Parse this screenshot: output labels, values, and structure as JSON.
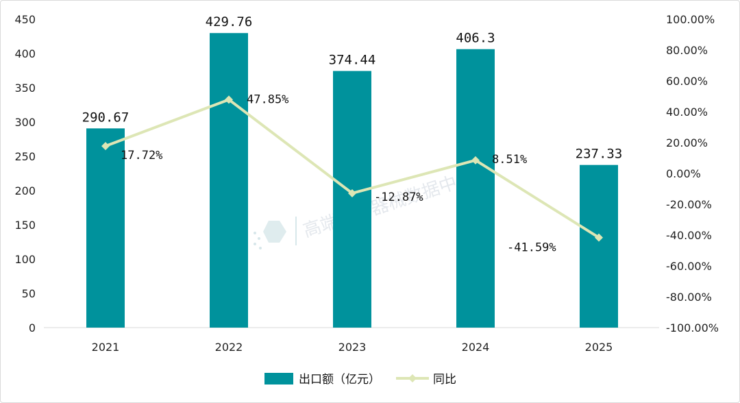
{
  "chart_data": {
    "type": "bar+line",
    "categories": [
      "2021",
      "2022",
      "2023",
      "2024",
      "2025"
    ],
    "series": [
      {
        "name": "出口额（亿元）",
        "type": "bar",
        "axis": "left",
        "values": [
          290.67,
          429.76,
          374.44,
          406.3,
          237.33
        ],
        "labels": [
          "290.67",
          "429.76",
          "374.44",
          "406.3",
          "237.33"
        ],
        "color": "#00929c"
      },
      {
        "name": "同比",
        "type": "line",
        "axis": "right",
        "values": [
          17.72,
          47.85,
          -12.87,
          8.51,
          -41.59
        ],
        "labels": [
          "17.72%",
          "47.85%",
          "-12.87%",
          "8.51%",
          "-41.59%"
        ],
        "color": "#dde6b5"
      }
    ],
    "y_left": {
      "range": [
        0,
        450
      ],
      "ticks": [
        "0",
        "50",
        "100",
        "150",
        "200",
        "250",
        "300",
        "350",
        "400",
        "450"
      ]
    },
    "y_right": {
      "range": [
        -100,
        100
      ],
      "ticks": [
        "-100.00%",
        "-80.00%",
        "-60.00%",
        "-40.00%",
        "-20.00%",
        "0.00%",
        "20.00%",
        "40.00%",
        "60.00%",
        "80.00%",
        "100.00%"
      ]
    },
    "grid": false,
    "legend": "bottom-center"
  },
  "watermark": "高端医疗器械数据中心"
}
